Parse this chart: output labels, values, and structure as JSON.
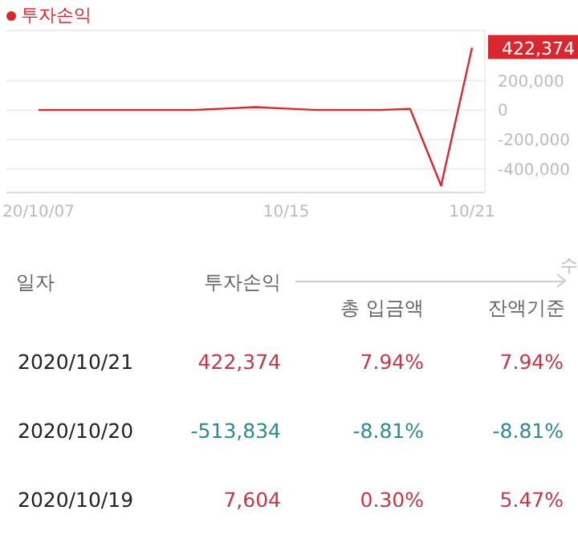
{
  "chart_data": {
    "type": "line",
    "categories": [
      "20/10/07",
      null,
      null,
      null,
      null,
      null,
      null,
      null,
      "10/15",
      null,
      null,
      null,
      null,
      null,
      "10/21"
    ],
    "series": [
      {
        "name": "투자손익",
        "color": "#d7282f",
        "values": [
          0,
          0,
          0,
          0,
          0,
          0,
          10000,
          20000,
          10000,
          0,
          0,
          0,
          7604,
          -513834,
          422374
        ],
        "value_labels": [
          null,
          null,
          null,
          null,
          null,
          null,
          null,
          null,
          null,
          null,
          null,
          null,
          null,
          null,
          "422,374"
        ]
      }
    ],
    "ylim": [
      -560000,
      540000
    ],
    "yticks": [
      {
        "value": -400000,
        "label": "-400,000"
      },
      {
        "value": -200000,
        "label": "-200,000"
      },
      0,
      {
        "value": 200000,
        "label": "200,000"
      }
    ],
    "grid": "y",
    "legend": "top left",
    "marker": "none",
    "line_style": "solid",
    "annotations": [
      "일자",
      "투자손익",
      "총 입금액",
      "잔액기준",
      "수",
      "2020/10/21",
      "422,374",
      "7.94%",
      "7.94%",
      "2020/10/20",
      "-513,834",
      "-8.81%",
      "-8.81%",
      "2020/10/19",
      "7,604",
      "0.30%",
      "5.47%"
    ]
  }
}
